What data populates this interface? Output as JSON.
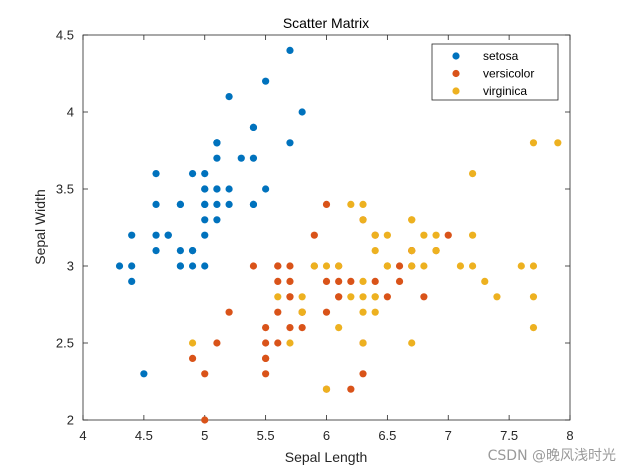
{
  "chart_data": {
    "type": "scatter",
    "title": "Scatter Matrix",
    "xlabel": "Sepal Length",
    "ylabel": "Sepal Width",
    "xlim": [
      4,
      8
    ],
    "ylim": [
      2,
      4.5
    ],
    "xticks": [
      "4",
      "4.5",
      "5",
      "5.5",
      "6",
      "6.5",
      "7",
      "7.5",
      "8"
    ],
    "yticks": [
      "2",
      "2.5",
      "3",
      "3.5",
      "4",
      "4.5"
    ],
    "legend_position": "top-right",
    "grid": false,
    "series": [
      {
        "name": "setosa",
        "color": "#0072BD",
        "points": [
          [
            5.1,
            3.5
          ],
          [
            4.9,
            3.0
          ],
          [
            4.7,
            3.2
          ],
          [
            4.6,
            3.1
          ],
          [
            5.0,
            3.6
          ],
          [
            5.4,
            3.9
          ],
          [
            4.6,
            3.4
          ],
          [
            5.0,
            3.4
          ],
          [
            4.4,
            2.9
          ],
          [
            4.9,
            3.1
          ],
          [
            5.4,
            3.7
          ],
          [
            4.8,
            3.4
          ],
          [
            4.8,
            3.0
          ],
          [
            4.3,
            3.0
          ],
          [
            5.8,
            4.0
          ],
          [
            5.7,
            4.4
          ],
          [
            5.4,
            3.9
          ],
          [
            5.1,
            3.5
          ],
          [
            5.7,
            3.8
          ],
          [
            5.1,
            3.8
          ],
          [
            5.4,
            3.4
          ],
          [
            5.1,
            3.7
          ],
          [
            4.6,
            3.6
          ],
          [
            5.1,
            3.3
          ],
          [
            4.8,
            3.4
          ],
          [
            5.0,
            3.0
          ],
          [
            5.0,
            3.4
          ],
          [
            5.2,
            3.5
          ],
          [
            5.2,
            3.4
          ],
          [
            4.7,
            3.2
          ],
          [
            4.8,
            3.1
          ],
          [
            5.4,
            3.4
          ],
          [
            5.2,
            4.1
          ],
          [
            5.5,
            4.2
          ],
          [
            4.9,
            3.1
          ],
          [
            5.0,
            3.2
          ],
          [
            5.5,
            3.5
          ],
          [
            4.9,
            3.6
          ],
          [
            4.4,
            3.0
          ],
          [
            5.1,
            3.4
          ],
          [
            5.0,
            3.5
          ],
          [
            4.5,
            2.3
          ],
          [
            4.4,
            3.2
          ],
          [
            5.0,
            3.5
          ],
          [
            5.1,
            3.8
          ],
          [
            4.8,
            3.0
          ],
          [
            5.1,
            3.8
          ],
          [
            4.6,
            3.2
          ],
          [
            5.3,
            3.7
          ],
          [
            5.0,
            3.3
          ]
        ]
      },
      {
        "name": "versicolor",
        "color": "#D95319",
        "points": [
          [
            7.0,
            3.2
          ],
          [
            6.4,
            3.2
          ],
          [
            6.9,
            3.1
          ],
          [
            5.5,
            2.3
          ],
          [
            6.5,
            2.8
          ],
          [
            5.7,
            2.8
          ],
          [
            6.3,
            3.3
          ],
          [
            4.9,
            2.4
          ],
          [
            6.6,
            2.9
          ],
          [
            5.2,
            2.7
          ],
          [
            5.0,
            2.0
          ],
          [
            5.9,
            3.0
          ],
          [
            6.0,
            2.2
          ],
          [
            6.1,
            2.9
          ],
          [
            5.6,
            2.9
          ],
          [
            6.7,
            3.1
          ],
          [
            5.6,
            3.0
          ],
          [
            5.8,
            2.7
          ],
          [
            6.2,
            2.2
          ],
          [
            5.6,
            2.5
          ],
          [
            5.9,
            3.2
          ],
          [
            6.1,
            2.8
          ],
          [
            6.3,
            2.5
          ],
          [
            6.1,
            2.8
          ],
          [
            6.4,
            2.9
          ],
          [
            6.6,
            3.0
          ],
          [
            6.8,
            2.8
          ],
          [
            6.7,
            3.0
          ],
          [
            6.0,
            2.9
          ],
          [
            5.7,
            2.6
          ],
          [
            5.5,
            2.4
          ],
          [
            5.5,
            2.4
          ],
          [
            5.8,
            2.7
          ],
          [
            6.0,
            2.7
          ],
          [
            5.4,
            3.0
          ],
          [
            6.0,
            3.4
          ],
          [
            6.7,
            3.1
          ],
          [
            6.3,
            2.3
          ],
          [
            5.6,
            3.0
          ],
          [
            5.5,
            2.5
          ],
          [
            5.5,
            2.6
          ],
          [
            6.1,
            3.0
          ],
          [
            5.8,
            2.6
          ],
          [
            5.0,
            2.3
          ],
          [
            5.6,
            2.7
          ],
          [
            5.7,
            3.0
          ],
          [
            5.7,
            2.9
          ],
          [
            6.2,
            2.9
          ],
          [
            5.1,
            2.5
          ],
          [
            5.7,
            2.8
          ]
        ]
      },
      {
        "name": "virginica",
        "color": "#EDB120",
        "points": [
          [
            6.3,
            3.3
          ],
          [
            5.8,
            2.7
          ],
          [
            7.1,
            3.0
          ],
          [
            6.3,
            2.9
          ],
          [
            6.5,
            3.0
          ],
          [
            7.6,
            3.0
          ],
          [
            4.9,
            2.5
          ],
          [
            7.3,
            2.9
          ],
          [
            6.7,
            2.5
          ],
          [
            7.2,
            3.6
          ],
          [
            6.5,
            3.2
          ],
          [
            6.4,
            2.7
          ],
          [
            6.8,
            3.0
          ],
          [
            5.7,
            2.5
          ],
          [
            5.8,
            2.8
          ],
          [
            6.4,
            3.2
          ],
          [
            6.5,
            3.0
          ],
          [
            7.7,
            3.8
          ],
          [
            7.7,
            2.6
          ],
          [
            6.0,
            2.2
          ],
          [
            6.9,
            3.2
          ],
          [
            5.6,
            2.8
          ],
          [
            7.7,
            2.8
          ],
          [
            6.3,
            2.7
          ],
          [
            6.7,
            3.3
          ],
          [
            7.2,
            3.2
          ],
          [
            6.2,
            2.8
          ],
          [
            6.1,
            3.0
          ],
          [
            6.4,
            2.8
          ],
          [
            7.2,
            3.0
          ],
          [
            7.4,
            2.8
          ],
          [
            7.9,
            3.8
          ],
          [
            6.4,
            2.8
          ],
          [
            6.3,
            2.8
          ],
          [
            6.1,
            2.6
          ],
          [
            7.7,
            3.0
          ],
          [
            6.3,
            3.4
          ],
          [
            6.4,
            3.1
          ],
          [
            6.0,
            3.0
          ],
          [
            6.9,
            3.1
          ],
          [
            6.7,
            3.1
          ],
          [
            6.9,
            3.1
          ],
          [
            5.8,
            2.7
          ],
          [
            6.8,
            3.2
          ],
          [
            6.7,
            3.3
          ],
          [
            6.7,
            3.0
          ],
          [
            6.3,
            2.5
          ],
          [
            6.5,
            3.0
          ],
          [
            6.2,
            3.4
          ],
          [
            5.9,
            3.0
          ]
        ]
      }
    ]
  },
  "watermark": "CSDN @晚风浅时光"
}
